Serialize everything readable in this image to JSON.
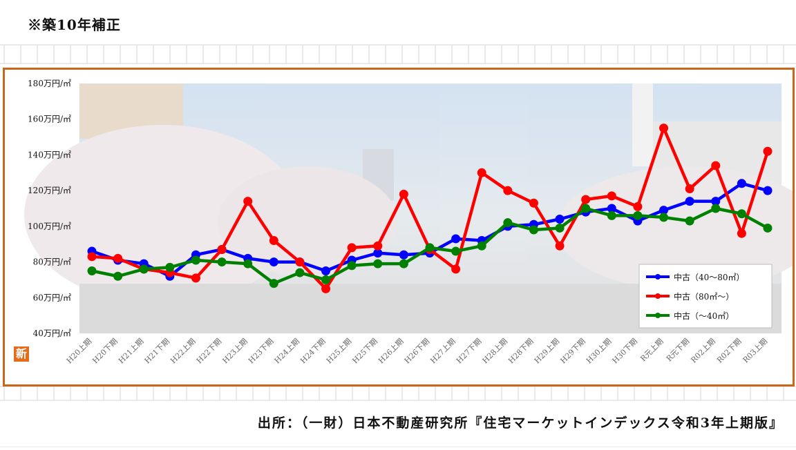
{
  "note": "※築10年補正",
  "source": "出所：（一財）日本不動産研究所『住宅マーケットインデックス令和3年上期版』",
  "badge": "新",
  "chart_data": {
    "type": "line",
    "title": "",
    "xlabel": "",
    "ylabel": "",
    "ylim": [
      40,
      180
    ],
    "y_ticks": [
      {
        "value": 40,
        "label": "40万円/㎡"
      },
      {
        "value": 60,
        "label": "60万円/㎡"
      },
      {
        "value": 80,
        "label": "80万円/㎡"
      },
      {
        "value": 100,
        "label": "100万円/㎡"
      },
      {
        "value": 120,
        "label": "120万円/㎡"
      },
      {
        "value": 140,
        "label": "140万円/㎡"
      },
      {
        "value": 160,
        "label": "160万円/㎡"
      },
      {
        "value": 180,
        "label": "180万円/㎡"
      }
    ],
    "categories": [
      "H20上期",
      "H20下期",
      "H21上期",
      "H21下期",
      "H22上期",
      "H22下期",
      "H23上期",
      "H23下期",
      "H24上期",
      "H24下期",
      "H25上期",
      "H25下期",
      "H26上期",
      "H26下期",
      "H27上期",
      "H27下期",
      "H28上期",
      "H28下期",
      "H29上期",
      "H29下期",
      "H30上期",
      "H30下期",
      "R元上期",
      "R元下期",
      "R02上期",
      "R02下期",
      "R03上期"
    ],
    "series": [
      {
        "name": "中古（40～80㎡）",
        "color": "#0000ff",
        "values": [
          86,
          81,
          79,
          72,
          84,
          87,
          82,
          80,
          80,
          75,
          81,
          85,
          84,
          85,
          93,
          92,
          100,
          101,
          104,
          108,
          110,
          103,
          109,
          114,
          114,
          124,
          120
        ]
      },
      {
        "name": "中古（80㎡～）",
        "color": "#ff0000",
        "values": [
          83,
          82,
          76,
          74,
          71,
          87,
          114,
          92,
          80,
          65,
          88,
          89,
          118,
          87,
          76,
          130,
          120,
          113,
          89,
          115,
          117,
          111,
          155,
          121,
          134,
          96,
          142
        ]
      },
      {
        "name": "中古（～40㎡）",
        "color": "#008000",
        "values": [
          75,
          72,
          76,
          77,
          81,
          80,
          79,
          68,
          74,
          70,
          78,
          79,
          79,
          88,
          86,
          89,
          102,
          98,
          99,
          110,
          106,
          106,
          105,
          103,
          110,
          107,
          99
        ]
      }
    ],
    "grid": false,
    "legend_position": "bottom-right"
  }
}
